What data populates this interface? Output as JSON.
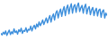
{
  "chart_data": {
    "type": "line",
    "color": "#3d8fdc",
    "tick_labels": false,
    "ylim": [
      10,
      100
    ],
    "values": [
      22,
      18,
      25,
      20,
      28,
      17,
      24,
      30,
      19,
      26,
      21,
      33,
      24,
      28,
      20,
      31,
      26,
      35,
      22,
      29,
      27,
      36,
      25,
      32,
      30,
      40,
      28,
      37,
      42,
      33,
      45,
      38,
      50,
      41,
      47,
      55,
      44,
      52,
      60,
      48,
      58,
      66,
      50,
      63,
      70,
      55,
      72,
      78,
      60,
      74,
      82,
      64,
      79,
      88,
      66,
      84,
      92,
      70,
      86,
      95,
      72,
      88,
      93,
      74,
      90,
      97,
      76,
      85,
      91,
      72,
      87,
      94,
      70,
      83,
      88,
      68,
      80,
      86,
      66,
      78,
      84,
      65,
      79,
      82,
      62,
      76,
      80,
      60,
      72,
      66
    ]
  }
}
